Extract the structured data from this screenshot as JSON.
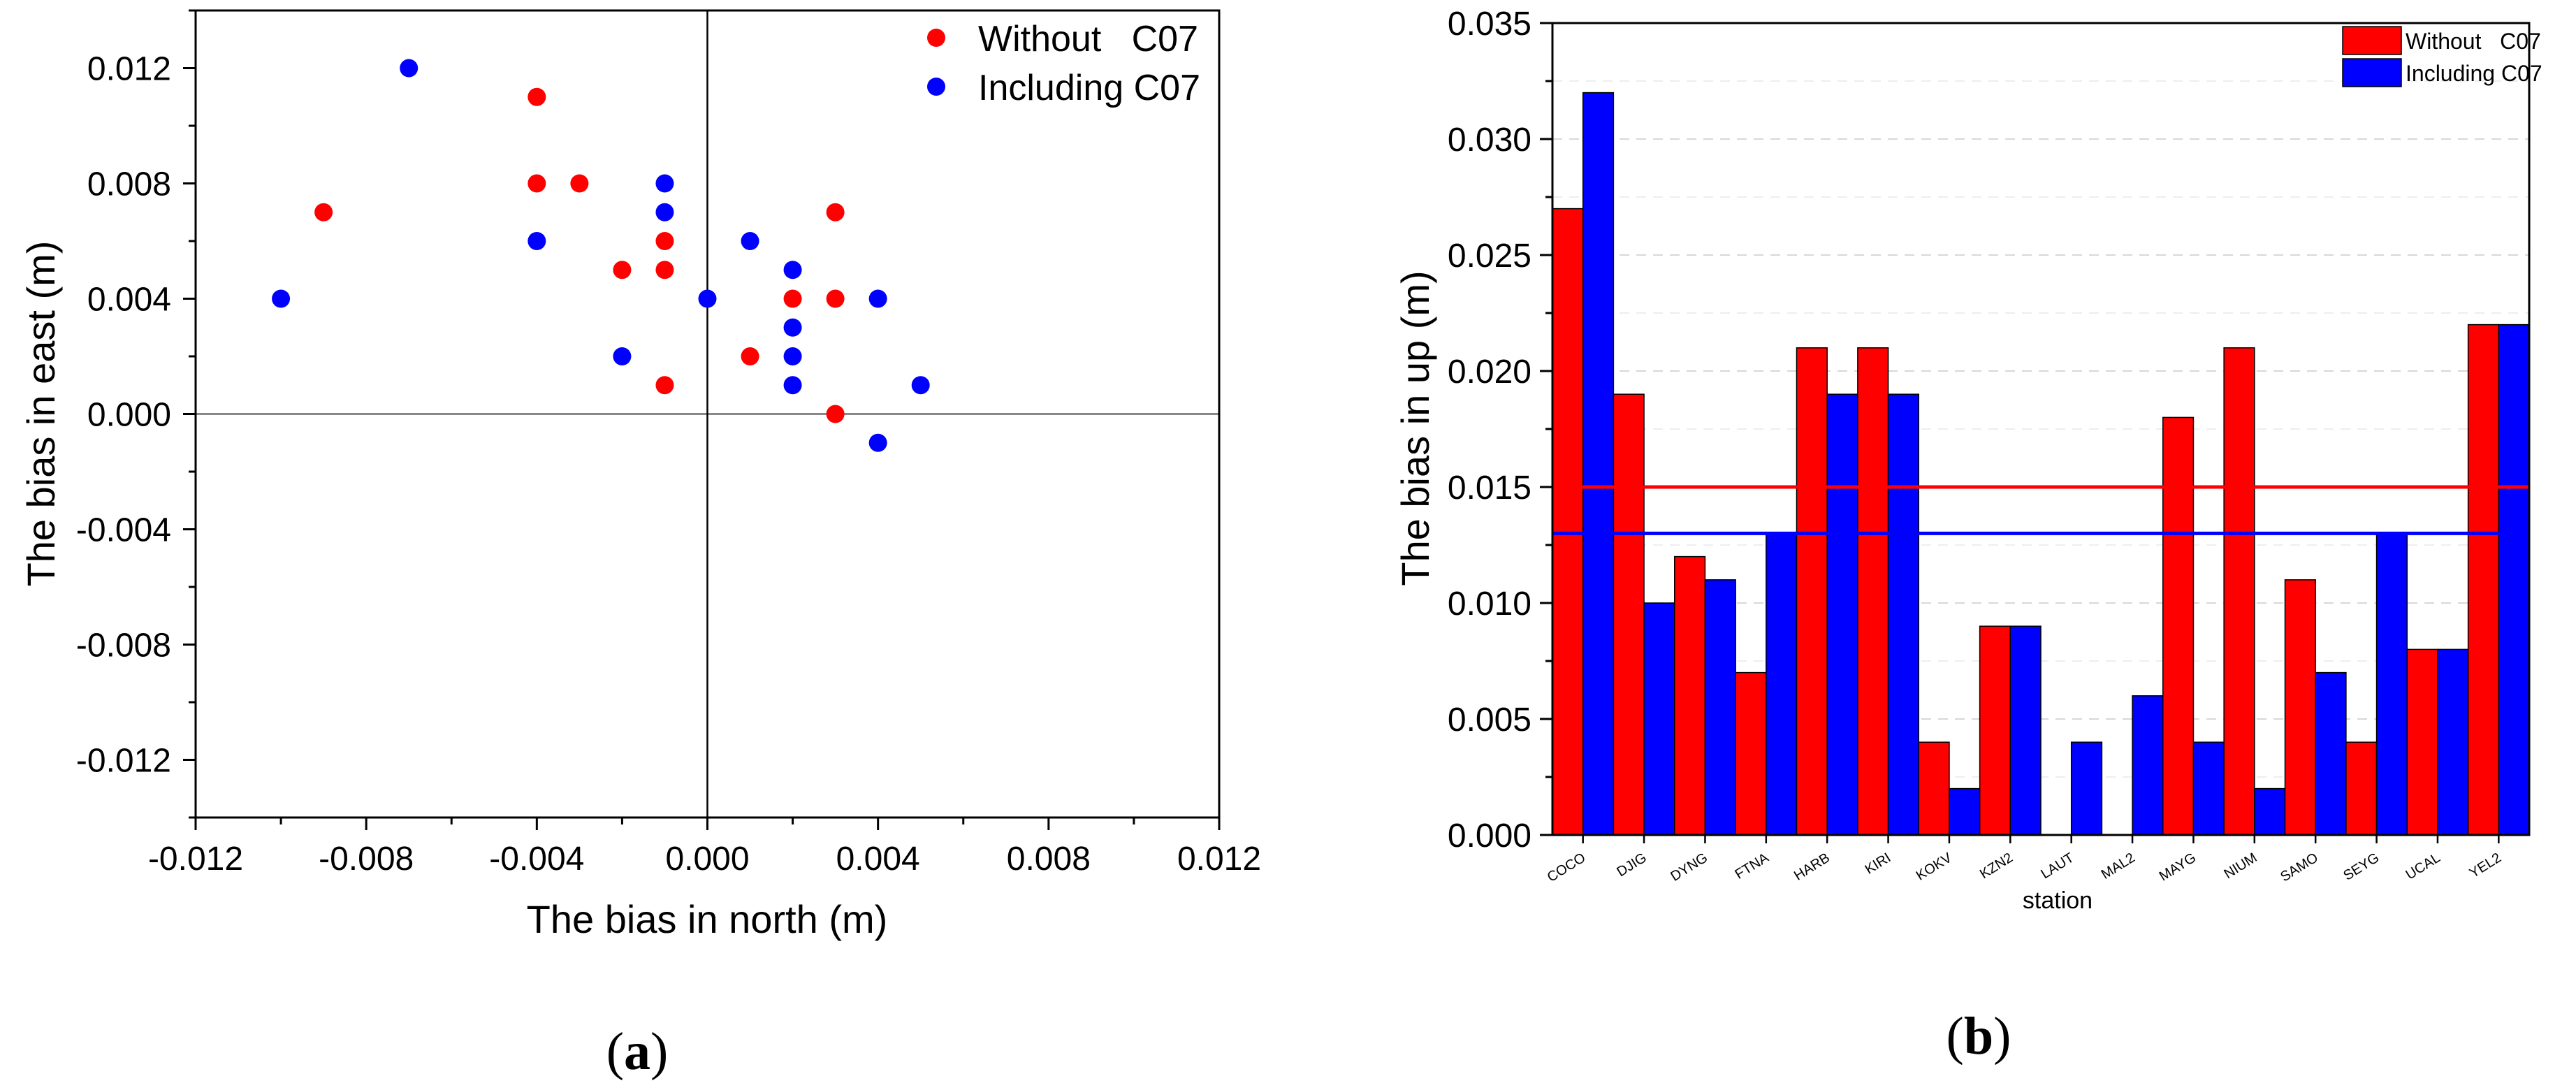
{
  "colors": {
    "without": "#ff0000",
    "including": "#0000ff",
    "axis": "#000000",
    "grid": "#cccccc"
  },
  "chart_data": [
    {
      "type": "scatter",
      "panel_label": "a",
      "title": "",
      "xlabel": "The bias in north (m)",
      "ylabel": "The bias in east (m)",
      "xlim": [
        -0.012,
        0.012
      ],
      "ylim": [
        -0.014,
        0.014
      ],
      "xticks": [
        "-0.012",
        "-0.008",
        "-0.004",
        "0.000",
        "0.004",
        "0.008",
        "0.012"
      ],
      "xtick_values": [
        -0.012,
        -0.008,
        -0.004,
        0.0,
        0.004,
        0.008,
        0.012
      ],
      "yticks": [
        "0.012",
        "0.008",
        "0.004",
        "0.000",
        "-0.004",
        "-0.008",
        "-0.012"
      ],
      "ytick_values": [
        0.012,
        0.008,
        0.004,
        0.0,
        -0.004,
        -0.008,
        -0.012
      ],
      "legend": "top-right",
      "series": [
        {
          "name": "Without   C07",
          "color": "#ff0000",
          "points": [
            [
              -0.009,
              0.007
            ],
            [
              -0.004,
              0.011
            ],
            [
              -0.004,
              0.008
            ],
            [
              -0.003,
              0.008
            ],
            [
              -0.002,
              0.005
            ],
            [
              -0.001,
              0.006
            ],
            [
              -0.001,
              0.005
            ],
            [
              -0.001,
              0.001
            ],
            [
              0.001,
              0.002
            ],
            [
              0.002,
              0.004
            ],
            [
              0.003,
              0.007
            ],
            [
              0.003,
              0.004
            ],
            [
              0.003,
              0.0
            ]
          ]
        },
        {
          "name": "Including C07",
          "color": "#0000ff",
          "points": [
            [
              -0.01,
              0.004
            ],
            [
              -0.007,
              0.012
            ],
            [
              -0.004,
              0.006
            ],
            [
              -0.002,
              0.002
            ],
            [
              -0.001,
              0.008
            ],
            [
              -0.001,
              0.007
            ],
            [
              0.0,
              0.004
            ],
            [
              0.001,
              0.006
            ],
            [
              0.002,
              0.005
            ],
            [
              0.002,
              0.003
            ],
            [
              0.002,
              0.002
            ],
            [
              0.002,
              0.001
            ],
            [
              0.004,
              0.004
            ],
            [
              0.004,
              -0.001
            ],
            [
              0.005,
              0.001
            ]
          ]
        }
      ]
    },
    {
      "type": "bar",
      "panel_label": "b",
      "title": "",
      "xlabel": "station",
      "ylabel": "The bias in up (m)",
      "ylim": [
        0,
        0.035
      ],
      "yticks": [
        "0.000",
        "0.005",
        "0.010",
        "0.015",
        "0.020",
        "0.025",
        "0.030",
        "0.035"
      ],
      "ytick_values": [
        0,
        0.005,
        0.01,
        0.015,
        0.02,
        0.025,
        0.03,
        0.035
      ],
      "categories": [
        "COCO",
        "DJIG",
        "DYNG",
        "FTNA",
        "HARB",
        "KIRI",
        "KOKV",
        "KZN2",
        "LAUT",
        "MAL2",
        "MAYG",
        "NIUM",
        "SAMO",
        "SEYG",
        "UCAL",
        "YEL2"
      ],
      "legend": "top-right",
      "series": [
        {
          "name": "Without   C07",
          "color": "#ff0000",
          "values": [
            0.027,
            0.019,
            0.012,
            0.007,
            0.021,
            0.021,
            0.004,
            0.009,
            0.0,
            0.0,
            0.018,
            0.021,
            0.011,
            0.004,
            0.008,
            0.022
          ],
          "mean_line": 0.015
        },
        {
          "name": "Including C07",
          "color": "#0000ff",
          "values": [
            0.032,
            0.01,
            0.011,
            0.013,
            0.019,
            0.019,
            0.002,
            0.009,
            0.004,
            0.006,
            0.004,
            0.002,
            0.007,
            0.013,
            0.008,
            0.022
          ],
          "mean_line": 0.013
        }
      ]
    }
  ]
}
